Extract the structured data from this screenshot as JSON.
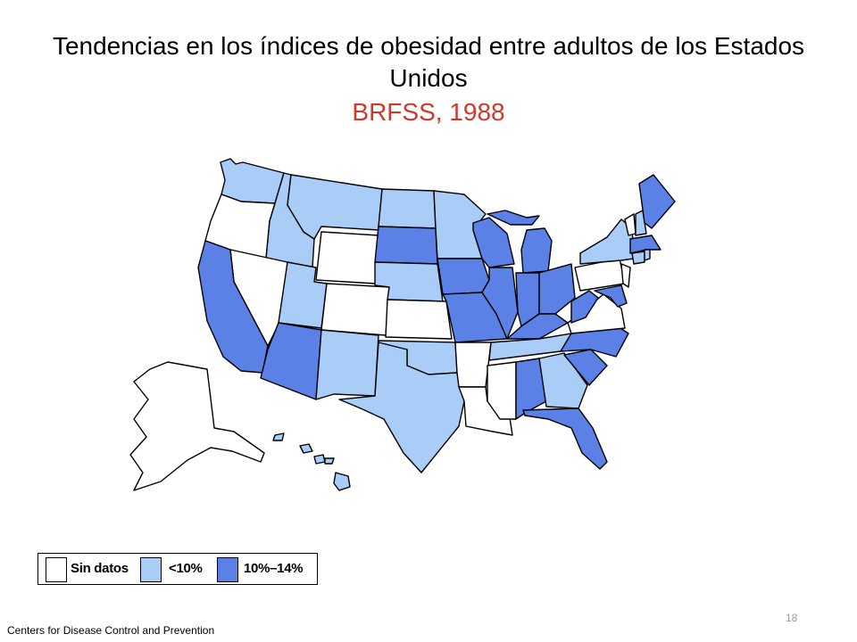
{
  "title": "Tendencias en los índices de obesidad entre adultos de los Estados Unidos",
  "subtitle": "BRFSS, 1988",
  "colors": {
    "no_data": "#ffffff",
    "low": "#a9cdf7",
    "mid": "#5b81e6",
    "subtitle": "#d0392b",
    "border": "#000000"
  },
  "legend": [
    {
      "label": "Sin datos",
      "color": "#ffffff"
    },
    {
      "label": "<10%",
      "color": "#a9cdf7"
    },
    {
      "label": "10%–14%",
      "color": "#5b81e6"
    }
  ],
  "footer": "Centers  for Disease Control and Prevention",
  "page_number": "18"
}
